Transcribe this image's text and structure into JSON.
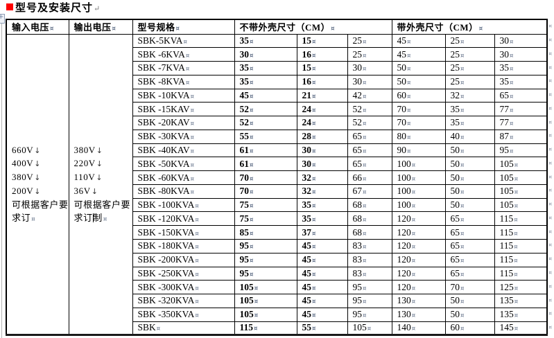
{
  "page": {
    "title": "型号及安装尺寸",
    "title_bullet_color": "#ff0000",
    "paragraph_mark": "↵",
    "line_break_mark": "↓",
    "cell_end_mark": "¤"
  },
  "table": {
    "headers": {
      "input_voltage": "输入电压",
      "output_voltage": "输出电压",
      "model_spec": "型号规格",
      "without_shell": "不带外壳尺寸（CM）",
      "with_shell": "带外壳尺寸（CM）"
    },
    "input_voltage_lines": [
      "660V",
      "400V",
      "380V",
      "200V",
      "可根据客户要",
      "求订"
    ],
    "output_voltage_lines": [
      "380V",
      "220V",
      "110V",
      "36V",
      "可根据客户要",
      "求订制"
    ],
    "output_cursor": {
      "line": 5,
      "char": 2
    },
    "rows": [
      {
        "model": "SBK-5KVA",
        "dims": [
          "35",
          "15",
          "25",
          "45",
          "25",
          "30"
        ]
      },
      {
        "model": "SBK -6KVA",
        "dims": [
          "30",
          "16",
          "25",
          "45",
          "25",
          "30"
        ]
      },
      {
        "model": "SBK -7KVA",
        "dims": [
          "35",
          "15",
          "30",
          "50",
          "25",
          "35"
        ]
      },
      {
        "model": "SBK -8KVA",
        "dims": [
          "35",
          "16",
          "30",
          "50",
          "25",
          "35"
        ]
      },
      {
        "model": "SBK -10KVA",
        "dims": [
          "45",
          "21",
          "42",
          "60",
          "32",
          "65"
        ]
      },
      {
        "model": "SBK -15KAV",
        "dims": [
          "52",
          "24",
          "52",
          "70",
          "35",
          "77"
        ]
      },
      {
        "model": "SBK -20KAV",
        "dims": [
          "52",
          "24",
          "52",
          "70",
          "35",
          "77"
        ]
      },
      {
        "model": "SBK -30KVA",
        "dims": [
          "55",
          "28",
          "65",
          "80",
          "40",
          "87"
        ]
      },
      {
        "model": "SBK -40KAV",
        "dims": [
          "61",
          "30",
          "65",
          "90",
          "50",
          "95"
        ]
      },
      {
        "model": "SBK -50KVA",
        "dims": [
          "61",
          "30",
          "65",
          "100",
          "50",
          "105"
        ]
      },
      {
        "model": "SBK -60KVA",
        "dims": [
          "70",
          "32",
          "66",
          "100",
          "50",
          "105"
        ]
      },
      {
        "model": "SBK -80KVA",
        "dims": [
          "70",
          "32",
          "67",
          "100",
          "50",
          "105"
        ]
      },
      {
        "model": "SBK -100KVA",
        "dims": [
          "75",
          "35",
          "68",
          "100",
          "50",
          "105"
        ]
      },
      {
        "model": "SBK -120KVA",
        "dims": [
          "75",
          "35",
          "68",
          "120",
          "65",
          "115"
        ]
      },
      {
        "model": "SBK -150KVA",
        "dims": [
          "85",
          "37",
          "68",
          "120",
          "65",
          "115"
        ]
      },
      {
        "model": "SBK -180KVA",
        "dims": [
          "95",
          "45",
          "83",
          "120",
          "65",
          "115"
        ]
      },
      {
        "model": "SBK -200KVA",
        "dims": [
          "95",
          "45",
          "83",
          "120",
          "65",
          "115"
        ]
      },
      {
        "model": "SBK -250KVA",
        "dims": [
          "95",
          "45",
          "83",
          "120",
          "65",
          "115"
        ]
      },
      {
        "model": "SBK -300KVA",
        "dims": [
          "105",
          "45",
          "95",
          "120",
          "70",
          "125"
        ]
      },
      {
        "model": "SBK -320KVA",
        "dims": [
          "105",
          "45",
          "95",
          "130",
          "50",
          "135"
        ]
      },
      {
        "model": "SBK -350KVA",
        "dims": [
          "105",
          "45",
          "95",
          "130",
          "50",
          "135"
        ]
      },
      {
        "model": "SBK",
        "dims": [
          "115",
          "55",
          "105",
          "140",
          "60",
          "145"
        ]
      }
    ]
  }
}
